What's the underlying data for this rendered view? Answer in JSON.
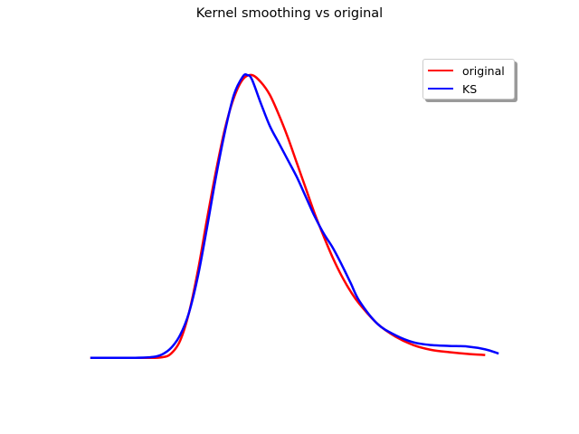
{
  "chart_data": {
    "type": "line",
    "title": "Kernel smoothing vs original",
    "xlabel": "",
    "ylabel": "",
    "axes_visible": false,
    "grid": false,
    "legend_position": "top-right",
    "xlim": [
      -0.2,
      4.8
    ],
    "ylim": [
      -0.1,
      1.08
    ],
    "series": [
      {
        "name": "original",
        "color": "#ff0000",
        "x": [
          0.0,
          0.6,
          0.8,
          0.9,
          1.0,
          1.1,
          1.2,
          1.3,
          1.4,
          1.5,
          1.6,
          1.7,
          1.8,
          1.9,
          2.0,
          2.1,
          2.2,
          2.3,
          2.4,
          2.5,
          2.6,
          2.7,
          2.8,
          2.9,
          3.0,
          3.2,
          3.4,
          3.6,
          3.8,
          4.0,
          4.2,
          4.4
        ],
        "y": [
          0.0,
          0.0,
          0.002,
          0.015,
          0.06,
          0.16,
          0.31,
          0.49,
          0.66,
          0.81,
          0.92,
          0.985,
          1.0,
          0.975,
          0.93,
          0.86,
          0.78,
          0.69,
          0.6,
          0.51,
          0.43,
          0.355,
          0.29,
          0.235,
          0.19,
          0.12,
          0.075,
          0.045,
          0.028,
          0.02,
          0.014,
          0.01
        ]
      },
      {
        "name": "KS",
        "color": "#0000ff",
        "x": [
          0.0,
          0.5,
          0.7,
          0.8,
          0.9,
          1.0,
          1.1,
          1.2,
          1.3,
          1.4,
          1.5,
          1.6,
          1.7,
          1.75,
          1.8,
          1.9,
          2.0,
          2.1,
          2.2,
          2.3,
          2.4,
          2.5,
          2.6,
          2.7,
          2.8,
          2.9,
          3.0,
          3.2,
          3.4,
          3.6,
          3.8,
          4.0,
          4.2,
          4.4,
          4.55
        ],
        "y": [
          0.0,
          0.0,
          0.003,
          0.012,
          0.035,
          0.08,
          0.16,
          0.29,
          0.46,
          0.64,
          0.8,
          0.93,
          0.995,
          1.0,
          0.985,
          0.9,
          0.82,
          0.76,
          0.7,
          0.64,
          0.57,
          0.5,
          0.44,
          0.39,
          0.33,
          0.265,
          0.2,
          0.12,
          0.08,
          0.055,
          0.045,
          0.042,
          0.04,
          0.03,
          0.015
        ]
      }
    ]
  }
}
